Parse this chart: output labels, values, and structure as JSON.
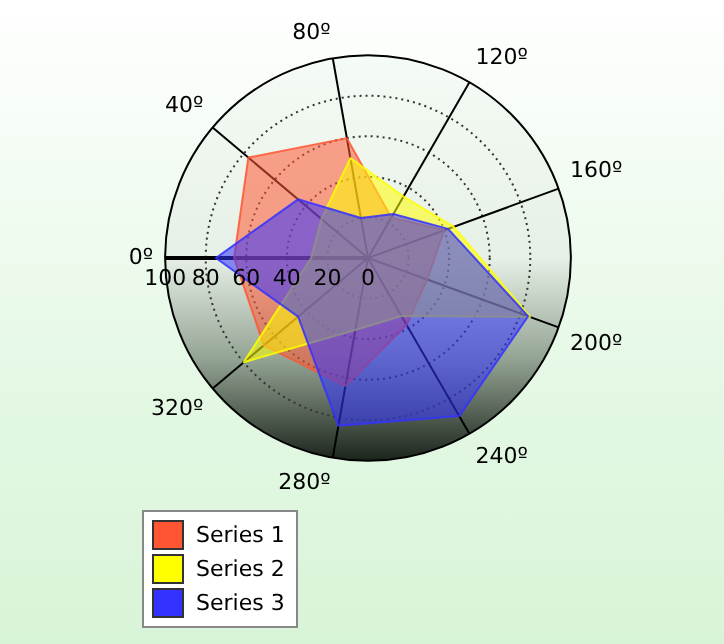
{
  "chart_data": {
    "type": "radar",
    "categories": [
      "80º",
      "120º",
      "160º",
      "200º",
      "240º",
      "280º",
      "320º",
      "0º",
      "40º"
    ],
    "ylim": [
      0,
      100
    ],
    "yticks": [
      0,
      20,
      40,
      60,
      80,
      100
    ],
    "grid": true,
    "legend": "bottom left",
    "marker": "none",
    "series": [
      {
        "name": "Series 1",
        "color": "#ff5533",
        "values": [
          60,
          23,
          40,
          31,
          38,
          64,
          67,
          66,
          77
        ]
      },
      {
        "name": "Series 2",
        "color": "#ffff00",
        "values": [
          50,
          35,
          45,
          85,
          33,
          36,
          80,
          28,
          30
        ]
      },
      {
        "name": "Series 3",
        "color": "#3333ff",
        "values": [
          20,
          25,
          42,
          84,
          90,
          84,
          45,
          75,
          45
        ]
      }
    ]
  }
}
